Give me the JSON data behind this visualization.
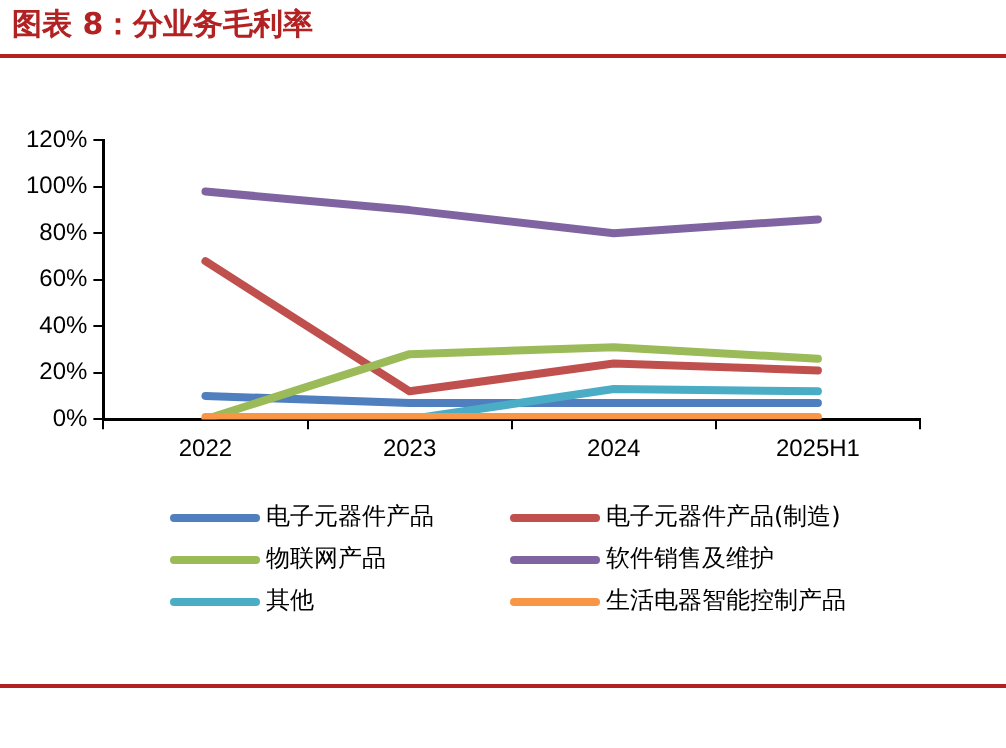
{
  "chart_data": {
    "type": "line",
    "title": "图表 8：分业务毛利率",
    "categories": [
      "2022",
      "2023",
      "2024",
      "2025H1"
    ],
    "series": [
      {
        "name": "电子元器件产品",
        "color": "#4f7fbf",
        "values": [
          10,
          7,
          7,
          7
        ]
      },
      {
        "name": "电子元器件产品(制造)",
        "color": "#c0504d",
        "values": [
          68,
          12,
          24,
          21
        ]
      },
      {
        "name": "物联网产品",
        "color": "#9bbb59",
        "values": [
          0,
          28,
          31,
          26
        ]
      },
      {
        "name": "软件销售及维护",
        "color": "#8064a2",
        "values": [
          98,
          90,
          80,
          86
        ]
      },
      {
        "name": "其他",
        "color": "#4bacc6",
        "values": [
          0,
          0,
          13,
          12
        ]
      },
      {
        "name": "生活电器智能控制产品",
        "color": "#f79646",
        "values": [
          1,
          1,
          1,
          1
        ]
      }
    ],
    "ylim": [
      0,
      120
    ],
    "yticks": [
      {
        "value": 0,
        "label": "0%"
      },
      {
        "value": 20,
        "label": "20%"
      },
      {
        "value": 40,
        "label": "40%"
      },
      {
        "value": 60,
        "label": "60%"
      },
      {
        "value": 80,
        "label": "80%"
      },
      {
        "value": 100,
        "label": "100%"
      },
      {
        "value": 120,
        "label": "120%"
      }
    ],
    "grid": false,
    "legend": "bottom",
    "marker": "none",
    "line_style": "solid"
  }
}
